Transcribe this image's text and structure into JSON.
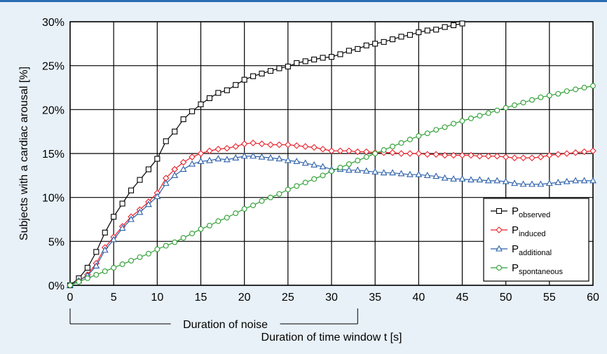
{
  "chart_data": {
    "type": "line",
    "xlabel": "Duration of time window t [s]",
    "ylabel": "Subjects with a cardiac arousal [%]",
    "xlim": [
      0,
      60
    ],
    "ylim": [
      0,
      30
    ],
    "x_ticks": [
      "0",
      "5",
      "10",
      "15",
      "20",
      "25",
      "30",
      "35",
      "40",
      "45",
      "50",
      "55",
      "60"
    ],
    "y_ticks": [
      "0%",
      "5%",
      "10%",
      "15%",
      "20%",
      "25%",
      "30%"
    ],
    "grid": true,
    "legend_position": "bottom-right",
    "noise_annotation": {
      "label": "Duration of noise",
      "x_start": 0,
      "x_end": 33
    },
    "series": [
      {
        "name": "P",
        "sub": "observed",
        "color": "#000000",
        "marker": "square",
        "points": [
          [
            0,
            0
          ],
          [
            1,
            0.8
          ],
          [
            2,
            2.0
          ],
          [
            3,
            3.8
          ],
          [
            4,
            6.0
          ],
          [
            5,
            7.8
          ],
          [
            6,
            9.3
          ],
          [
            7,
            10.8
          ],
          [
            8,
            12.0
          ],
          [
            9,
            13.2
          ],
          [
            10,
            14.4
          ],
          [
            11,
            16.4
          ],
          [
            12,
            17.5
          ],
          [
            13,
            18.9
          ],
          [
            14,
            19.8
          ],
          [
            15,
            20.6
          ],
          [
            16,
            21.3
          ],
          [
            17,
            21.9
          ],
          [
            18,
            22.2
          ],
          [
            19,
            22.8
          ],
          [
            20,
            23.4
          ],
          [
            21,
            23.8
          ],
          [
            22,
            24.1
          ],
          [
            23,
            24.4
          ],
          [
            24,
            24.7
          ],
          [
            25,
            24.9
          ],
          [
            26,
            25.3
          ],
          [
            27,
            25.5
          ],
          [
            28,
            25.7
          ],
          [
            29,
            25.9
          ],
          [
            30,
            26.0
          ],
          [
            31,
            26.3
          ],
          [
            32,
            26.7
          ],
          [
            33,
            26.9
          ],
          [
            34,
            27.3
          ],
          [
            35,
            27.5
          ],
          [
            36,
            27.7
          ],
          [
            37,
            28.0
          ],
          [
            38,
            28.3
          ],
          [
            39,
            28.5
          ],
          [
            40,
            28.8
          ],
          [
            41,
            29.0
          ],
          [
            42,
            29.1
          ],
          [
            43,
            29.4
          ],
          [
            44,
            29.6
          ],
          [
            45,
            29.8
          ]
        ]
      },
      {
        "name": "P",
        "sub": "induced",
        "color": "#e8202a",
        "marker": "diamond",
        "points": [
          [
            0,
            0
          ],
          [
            1,
            0.5
          ],
          [
            2,
            1.2
          ],
          [
            3,
            2.5
          ],
          [
            4,
            4.3
          ],
          [
            5,
            5.5
          ],
          [
            6,
            6.7
          ],
          [
            7,
            7.8
          ],
          [
            8,
            8.6
          ],
          [
            9,
            9.5
          ],
          [
            10,
            10.5
          ],
          [
            11,
            12.2
          ],
          [
            12,
            13.2
          ],
          [
            13,
            14.0
          ],
          [
            14,
            14.6
          ],
          [
            15,
            15.0
          ],
          [
            16,
            15.3
          ],
          [
            17,
            15.5
          ],
          [
            18,
            15.6
          ],
          [
            19,
            15.8
          ],
          [
            20,
            16.1
          ],
          [
            21,
            16.2
          ],
          [
            22,
            16.1
          ],
          [
            23,
            16.0
          ],
          [
            24,
            16.0
          ],
          [
            25,
            16.0
          ],
          [
            26,
            15.9
          ],
          [
            27,
            15.8
          ],
          [
            28,
            15.7
          ],
          [
            29,
            15.5
          ],
          [
            30,
            15.3
          ],
          [
            31,
            15.3
          ],
          [
            32,
            15.3
          ],
          [
            33,
            15.2
          ],
          [
            34,
            15.2
          ],
          [
            35,
            15.1
          ],
          [
            36,
            15.1
          ],
          [
            37,
            15.1
          ],
          [
            38,
            15.0
          ],
          [
            39,
            15.0
          ],
          [
            40,
            15.0
          ],
          [
            41,
            14.9
          ],
          [
            42,
            14.9
          ],
          [
            43,
            14.8
          ],
          [
            44,
            14.8
          ],
          [
            45,
            14.8
          ],
          [
            46,
            14.8
          ],
          [
            47,
            14.7
          ],
          [
            48,
            14.7
          ],
          [
            49,
            14.7
          ],
          [
            50,
            14.6
          ],
          [
            51,
            14.5
          ],
          [
            52,
            14.5
          ],
          [
            53,
            14.5
          ],
          [
            54,
            14.6
          ],
          [
            55,
            14.8
          ],
          [
            56,
            14.9
          ],
          [
            57,
            15.0
          ],
          [
            58,
            15.1
          ],
          [
            59,
            15.2
          ],
          [
            60,
            15.3
          ]
        ]
      },
      {
        "name": "P",
        "sub": "additional",
        "color": "#2b5fa8",
        "marker": "triangle",
        "points": [
          [
            0,
            0
          ],
          [
            1,
            0.5
          ],
          [
            2,
            1.1
          ],
          [
            3,
            2.2
          ],
          [
            4,
            4.0
          ],
          [
            5,
            5.2
          ],
          [
            6,
            6.5
          ],
          [
            7,
            7.5
          ],
          [
            8,
            8.3
          ],
          [
            9,
            9.2
          ],
          [
            10,
            10.1
          ],
          [
            11,
            11.6
          ],
          [
            12,
            12.5
          ],
          [
            13,
            13.2
          ],
          [
            14,
            13.8
          ],
          [
            15,
            14.1
          ],
          [
            16,
            14.2
          ],
          [
            17,
            14.4
          ],
          [
            18,
            14.3
          ],
          [
            19,
            14.5
          ],
          [
            20,
            14.7
          ],
          [
            21,
            14.7
          ],
          [
            22,
            14.6
          ],
          [
            23,
            14.5
          ],
          [
            24,
            14.4
          ],
          [
            25,
            14.2
          ],
          [
            26,
            14.1
          ],
          [
            27,
            13.9
          ],
          [
            28,
            13.7
          ],
          [
            29,
            13.5
          ],
          [
            30,
            13.2
          ],
          [
            31,
            13.2
          ],
          [
            32,
            13.1
          ],
          [
            33,
            13.1
          ],
          [
            34,
            13.0
          ],
          [
            35,
            12.9
          ],
          [
            36,
            12.8
          ],
          [
            37,
            12.8
          ],
          [
            38,
            12.7
          ],
          [
            39,
            12.6
          ],
          [
            40,
            12.6
          ],
          [
            41,
            12.5
          ],
          [
            42,
            12.4
          ],
          [
            43,
            12.2
          ],
          [
            44,
            12.1
          ],
          [
            45,
            12.1
          ],
          [
            46,
            12.0
          ],
          [
            47,
            12.0
          ],
          [
            48,
            11.9
          ],
          [
            49,
            11.9
          ],
          [
            50,
            11.8
          ],
          [
            51,
            11.6
          ],
          [
            52,
            11.5
          ],
          [
            53,
            11.5
          ],
          [
            54,
            11.5
          ],
          [
            55,
            11.6
          ],
          [
            56,
            11.7
          ],
          [
            57,
            11.8
          ],
          [
            58,
            11.9
          ],
          [
            59,
            11.9
          ],
          [
            60,
            11.9
          ]
        ]
      },
      {
        "name": "P",
        "sub": "spontaneous",
        "color": "#2e9e34",
        "marker": "circle",
        "points": [
          [
            0,
            0
          ],
          [
            1,
            0.4
          ],
          [
            2,
            0.8
          ],
          [
            3,
            1.2
          ],
          [
            4,
            1.6
          ],
          [
            5,
            2.0
          ],
          [
            6,
            2.4
          ],
          [
            7,
            2.8
          ],
          [
            8,
            3.2
          ],
          [
            9,
            3.6
          ],
          [
            10,
            4.1
          ],
          [
            11,
            4.5
          ],
          [
            12,
            4.9
          ],
          [
            13,
            5.4
          ],
          [
            14,
            5.9
          ],
          [
            15,
            6.4
          ],
          [
            16,
            6.8
          ],
          [
            17,
            7.3
          ],
          [
            18,
            7.7
          ],
          [
            19,
            8.2
          ],
          [
            20,
            8.7
          ],
          [
            21,
            9.1
          ],
          [
            22,
            9.6
          ],
          [
            23,
            10.0
          ],
          [
            24,
            10.4
          ],
          [
            25,
            10.9
          ],
          [
            26,
            11.3
          ],
          [
            27,
            11.7
          ],
          [
            28,
            12.1
          ],
          [
            29,
            12.5
          ],
          [
            30,
            13.0
          ],
          [
            31,
            13.4
          ],
          [
            32,
            13.8
          ],
          [
            33,
            14.2
          ],
          [
            34,
            14.6
          ],
          [
            35,
            15.0
          ],
          [
            36,
            15.4
          ],
          [
            37,
            15.8
          ],
          [
            38,
            16.2
          ],
          [
            39,
            16.6
          ],
          [
            40,
            17.0
          ],
          [
            41,
            17.3
          ],
          [
            42,
            17.7
          ],
          [
            43,
            18.0
          ],
          [
            44,
            18.4
          ],
          [
            45,
            18.7
          ],
          [
            46,
            19.0
          ],
          [
            47,
            19.3
          ],
          [
            48,
            19.6
          ],
          [
            49,
            19.9
          ],
          [
            50,
            20.2
          ],
          [
            51,
            20.5
          ],
          [
            52,
            20.8
          ],
          [
            53,
            21.1
          ],
          [
            54,
            21.4
          ],
          [
            55,
            21.6
          ],
          [
            56,
            21.8
          ],
          [
            57,
            22.1
          ],
          [
            58,
            22.3
          ],
          [
            59,
            22.5
          ],
          [
            60,
            22.7
          ]
        ]
      }
    ]
  }
}
